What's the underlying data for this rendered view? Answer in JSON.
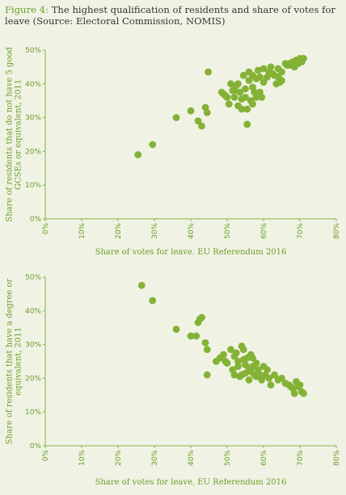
{
  "figure": {
    "prefix": "Figure 4:",
    "title": "The highest qualification of residents and share of votes for leave (Source: Electoral Commission, NOMIS)"
  },
  "colors": {
    "point": "#84b236",
    "text": "#6a9c27",
    "axis": "#8ab04a",
    "background": "#f0f3e4"
  },
  "chart_data": [
    {
      "type": "scatter",
      "xlabel": "Share of votes for leave, EU Referendum 2016",
      "ylabel": "Share of residents that do not have 5 good GCSEs or equivalent, 2011",
      "xlim": [
        0,
        80
      ],
      "ylim": [
        0,
        50
      ],
      "xticks": [
        "0%",
        "10%",
        "20%",
        "30%",
        "40%",
        "50%",
        "60%",
        "70%",
        "80%"
      ],
      "yticks": [
        "0%",
        "10%",
        "20%",
        "30%",
        "40%",
        "50%"
      ],
      "x": [
        25.5,
        29.5,
        36,
        40,
        42,
        43,
        44,
        44.5,
        44.8,
        48.5,
        49,
        49.5,
        50,
        50.5,
        51,
        51.5,
        52,
        52,
        52.5,
        53,
        53,
        53.5,
        54,
        54,
        54.5,
        55,
        55,
        55.5,
        56,
        56,
        56.5,
        57,
        57,
        57.5,
        58,
        58,
        58.5,
        59,
        59,
        59.5,
        60,
        60,
        61,
        61.5,
        62,
        62.5,
        63,
        63.5,
        64,
        64,
        64.5,
        65,
        65,
        66,
        66.5,
        67,
        67.5,
        68,
        68.5,
        69,
        69.5,
        70,
        70.5,
        71,
        55.5,
        57
      ],
      "y": [
        19,
        22,
        30,
        32,
        29,
        27.5,
        33,
        31.5,
        43.5,
        37.5,
        37,
        36.5,
        36,
        34,
        40,
        38,
        38,
        36,
        39.5,
        40,
        33.5,
        37.5,
        35.5,
        32.5,
        42.5,
        38.5,
        36,
        32.5,
        43.5,
        41,
        35,
        42.5,
        39,
        37.5,
        41.5,
        36,
        44,
        42,
        37.5,
        36,
        44.5,
        40.5,
        42,
        43.5,
        45,
        43,
        42.5,
        40,
        42,
        44.5,
        40.5,
        41,
        43.5,
        46,
        45.5,
        46,
        45.5,
        46.5,
        45,
        47,
        46,
        47.5,
        46.5,
        47.5,
        28,
        34
      ]
    },
    {
      "type": "scatter",
      "xlabel": "Share of votes for leave, EU Referendum 2016",
      "ylabel": "Share of residents that have a degree or equivalent, 2011",
      "xlim": [
        0,
        80
      ],
      "ylim": [
        0,
        50
      ],
      "xticks": [
        "0%",
        "10%",
        "20%",
        "30%",
        "40%",
        "50%",
        "60%",
        "70%",
        "80%"
      ],
      "yticks": [
        "0%",
        "10%",
        "20%",
        "30%",
        "40%",
        "50%"
      ],
      "x": [
        26.5,
        29.5,
        36,
        40,
        41.5,
        42,
        42.5,
        43,
        44,
        44.5,
        44.5,
        47,
        48,
        49,
        49.5,
        50,
        51,
        51.5,
        52,
        52,
        52.5,
        53,
        53,
        53.5,
        54,
        54,
        54.5,
        55,
        55,
        55.5,
        56,
        56,
        56.5,
        57,
        57,
        57.5,
        58,
        58,
        58.5,
        59,
        59.5,
        60,
        60.5,
        61,
        61.5,
        62,
        63,
        64,
        65,
        66,
        67,
        67.5,
        68,
        68.5,
        69,
        69.5,
        70,
        70.5,
        71,
        54.5,
        56.5
      ],
      "y": [
        47.5,
        43,
        34.5,
        32.5,
        32.5,
        36.5,
        37.5,
        38,
        30.5,
        28.5,
        21,
        25,
        26,
        27,
        25,
        24.5,
        28.5,
        22.5,
        26.5,
        21,
        27.5,
        25,
        23.5,
        20.5,
        29.5,
        21,
        25.5,
        24,
        21.5,
        26,
        23,
        19.5,
        22,
        23.5,
        26,
        21,
        24.5,
        20.5,
        22.5,
        21,
        19.5,
        23.5,
        21,
        22.5,
        20,
        18,
        21,
        19.5,
        20,
        18.5,
        18,
        17.5,
        17,
        15.5,
        19,
        17.5,
        18,
        16,
        15.5,
        28.5,
        27
      ]
    }
  ]
}
